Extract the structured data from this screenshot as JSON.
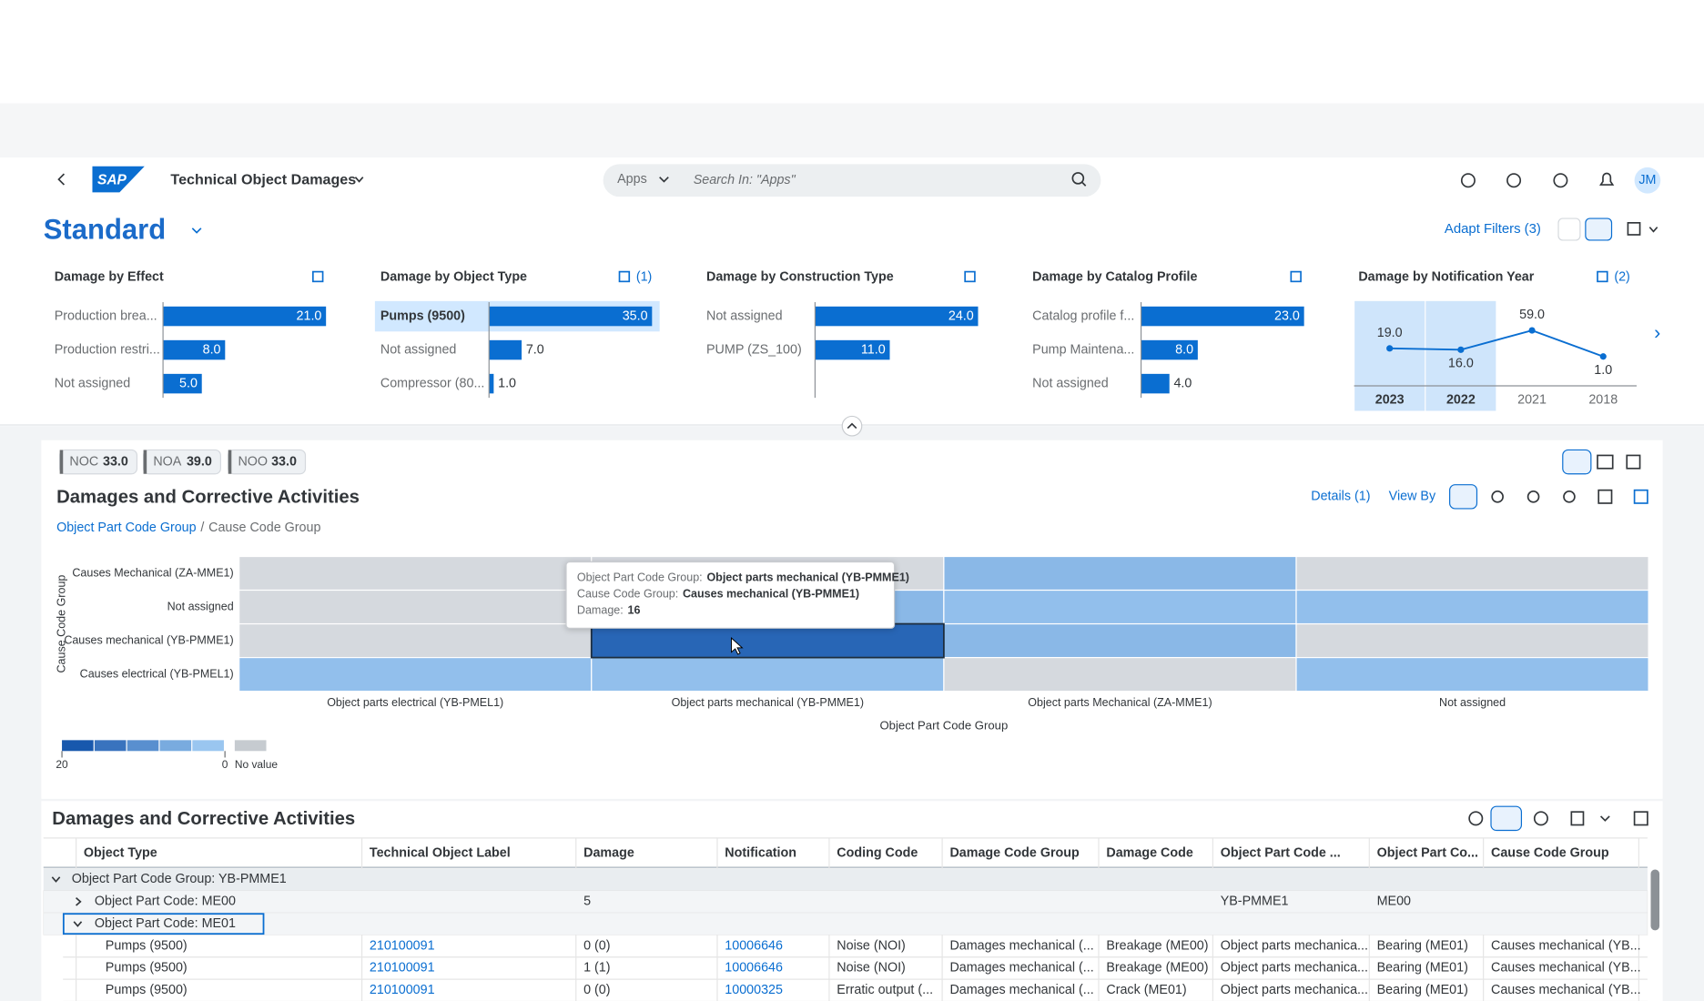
{
  "shell": {
    "logo": "SAP",
    "title": "Technical Object Damages",
    "search_scope": "Apps",
    "search_placeholder": "Search In: \"Apps\"",
    "avatar": "JM"
  },
  "page": {
    "variant": "Standard",
    "adapt_filters": "Adapt Filters (3)"
  },
  "filter_charts": [
    {
      "type": "bar",
      "title": "Damage by Effect",
      "categories": [
        "Production brea...",
        "Production restri...",
        "Not assigned"
      ],
      "values": [
        21,
        8,
        5
      ],
      "value_labels": [
        "21.0",
        "8.0",
        "5.0"
      ],
      "color": "#0a6ed1"
    },
    {
      "type": "bar",
      "title": "Damage by Object Type",
      "badge": "(1)",
      "categories": [
        "Pumps (9500)",
        "Not assigned",
        "Compressor (80..."
      ],
      "values": [
        35,
        7,
        1
      ],
      "value_labels": [
        "35.0",
        "7.0",
        "1.0"
      ],
      "color": "#0a6ed1",
      "selected": [
        0
      ]
    },
    {
      "type": "bar",
      "title": "Damage by Construction Type",
      "categories": [
        "Not assigned",
        "PUMP (ZS_100)"
      ],
      "values": [
        24,
        11
      ],
      "value_labels": [
        "24.0",
        "11.0"
      ],
      "color": "#0a6ed1"
    },
    {
      "type": "bar",
      "title": "Damage by Catalog Profile",
      "categories": [
        "Catalog profile f...",
        "Pump Maintena...",
        "Not assigned"
      ],
      "values": [
        23,
        8,
        4
      ],
      "value_labels": [
        "23.0",
        "8.0",
        "4.0"
      ],
      "color": "#0a6ed1"
    },
    {
      "type": "line",
      "title": "Damage by Notification Year",
      "badge": "(2)",
      "categories": [
        "2023",
        "2022",
        "2021",
        "2018"
      ],
      "values": [
        19,
        16,
        59,
        1
      ],
      "value_labels": [
        "19.0",
        "16.0",
        "59.0",
        "1.0"
      ],
      "color": "#0a6ed1",
      "selected": [
        0,
        1
      ]
    }
  ],
  "kpis": [
    {
      "label": "NOC",
      "value": "33.0"
    },
    {
      "label": "NOA",
      "value": "39.0"
    },
    {
      "label": "NOO",
      "value": "33.0"
    }
  ],
  "heatmap": {
    "type": "heatmap",
    "title": "Damages and Corrective Activities",
    "details": "Details (1)",
    "view_by": "View By",
    "breadcrumb": [
      "Object Part Code Group",
      "Cause Code Group"
    ],
    "breadcrumb_separator": "/",
    "y_axis_title": "Cause Code Group",
    "x_axis_title": "Object Part Code Group",
    "rows": [
      "Causes Mechanical (ZA-MME1)",
      "Not assigned",
      "Causes mechanical (YB-PMME1)",
      "Causes electrical (YB-PMEL1)"
    ],
    "columns": [
      "Object parts electrical (YB-PMEL1)",
      "Object parts mechanical (YB-PMME1)",
      "Object parts Mechanical (ZA-MME1)",
      "Not assigned"
    ],
    "values": [
      [
        null,
        null,
        4,
        null
      ],
      [
        null,
        4,
        3,
        3
      ],
      [
        null,
        16,
        4,
        null
      ],
      [
        3,
        3,
        null,
        3
      ]
    ],
    "selected": [
      2,
      1
    ],
    "legend": {
      "range": [
        20,
        0
      ],
      "no_value": "No value"
    },
    "tooltip": [
      {
        "label": "Object Part Code Group:",
        "value": "Object parts mechanical (YB-PMME1)"
      },
      {
        "label": "Cause Code Group:",
        "value": "Causes mechanical (YB-PMME1)"
      },
      {
        "label": "Damage:",
        "value": "16"
      }
    ]
  },
  "table": {
    "title": "Damages and Corrective Activities",
    "columns": [
      "Object Type",
      "Technical Object Label",
      "Damage",
      "Notification",
      "Coding Code",
      "Damage Code Group",
      "Damage Code",
      "Object Part Code ...",
      "Object Part Co...",
      "Cause Code Group"
    ],
    "group": "Object Part Code Group: YB-PMME1",
    "subgroups": [
      {
        "label": "Object Part Code: ME00",
        "damage": "5",
        "object_part_code": "YB-PMME1",
        "object_part": "ME00"
      },
      {
        "label": "Object Part Code: ME01"
      }
    ],
    "rows": [
      [
        "Pumps (9500)",
        "210100091",
        "0 (0)",
        "10006646",
        "Noise (NOI)",
        "Damages mechanical (...",
        "Breakage (ME00)",
        "Object parts mechanica...",
        "Bearing (ME01)",
        "Causes mechanical (YB..."
      ],
      [
        "Pumps (9500)",
        "210100091",
        "1 (1)",
        "10006646",
        "Noise (NOI)",
        "Damages mechanical (...",
        "Breakage (ME00)",
        "Object parts mechanica...",
        "Bearing (ME01)",
        "Causes mechanical (YB..."
      ],
      [
        "Pumps (9500)",
        "210100091",
        "0 (0)",
        "10000325",
        "Erratic output (...",
        "Damages mechanical (...",
        "Crack (ME01)",
        "Object parts mechanica...",
        "Bearing (ME01)",
        "Causes mechanical (YB..."
      ]
    ]
  }
}
